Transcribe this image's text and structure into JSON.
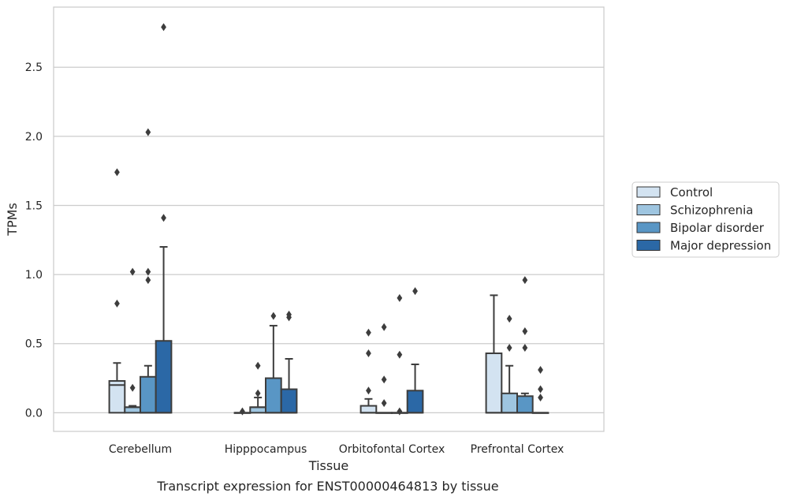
{
  "chart_data": {
    "type": "box",
    "title": "Transcript expression for ENST00000464813 by tissue",
    "xlabel": "Tissue",
    "ylabel": "TPMs",
    "ylim": [
      -0.135,
      2.935
    ],
    "yticks": [
      0.0,
      0.5,
      1.0,
      1.5,
      2.0,
      2.5
    ],
    "ytick_labels": [
      "0.0",
      "0.5",
      "1.0",
      "1.5",
      "2.0",
      "2.5"
    ],
    "categories": [
      "Cerebellum",
      "Hipppocampus",
      "Orbitofontal Cortex",
      "Prefrontal Cortex"
    ],
    "grid": "horizontal",
    "legend_position": "right",
    "series": [
      {
        "name": "Control",
        "color": "#d3e3f1",
        "boxes": [
          {
            "q1": 0.0,
            "median": 0.2,
            "q3": 0.23,
            "whisker_low": 0.0,
            "whisker_high": 0.36,
            "outliers": [
              1.74,
              0.79
            ]
          },
          {
            "q1": 0.0,
            "median": 0.0,
            "q3": 0.0,
            "whisker_low": 0.0,
            "whisker_high": 0.0,
            "outliers": [
              0.01
            ]
          },
          {
            "q1": 0.0,
            "median": 0.0,
            "q3": 0.05,
            "whisker_low": 0.0,
            "whisker_high": 0.1,
            "outliers": [
              0.58,
              0.43,
              0.16
            ]
          },
          {
            "q1": 0.0,
            "median": 0.0,
            "q3": 0.43,
            "whisker_low": 0.0,
            "whisker_high": 0.85,
            "outliers": []
          }
        ]
      },
      {
        "name": "Schizophrenia",
        "color": "#9ec5e0",
        "boxes": [
          {
            "q1": 0.0,
            "median": 0.04,
            "q3": 0.04,
            "whisker_low": 0.0,
            "whisker_high": 0.05,
            "outliers": [
              1.02,
              0.18
            ]
          },
          {
            "q1": 0.0,
            "median": 0.04,
            "q3": 0.04,
            "whisker_low": 0.0,
            "whisker_high": 0.11,
            "outliers": [
              0.34,
              0.14
            ]
          },
          {
            "q1": 0.0,
            "median": 0.0,
            "q3": 0.0,
            "whisker_low": 0.0,
            "whisker_high": 0.0,
            "outliers": [
              0.62,
              0.24,
              0.07
            ]
          },
          {
            "q1": 0.0,
            "median": 0.0,
            "q3": 0.14,
            "whisker_low": 0.0,
            "whisker_high": 0.34,
            "outliers": [
              0.68,
              0.47
            ]
          }
        ]
      },
      {
        "name": "Bipolar disorder",
        "color": "#5996c5",
        "boxes": [
          {
            "q1": 0.0,
            "median": 0.0,
            "q3": 0.26,
            "whisker_low": 0.0,
            "whisker_high": 0.34,
            "outliers": [
              2.03,
              1.02,
              0.96
            ]
          },
          {
            "q1": 0.0,
            "median": 0.0,
            "q3": 0.25,
            "whisker_low": 0.0,
            "whisker_high": 0.63,
            "outliers": [
              0.7
            ]
          },
          {
            "q1": 0.0,
            "median": 0.0,
            "q3": 0.0,
            "whisker_low": 0.0,
            "whisker_high": 0.0,
            "outliers": [
              0.83,
              0.42,
              0.01
            ]
          },
          {
            "q1": 0.0,
            "median": 0.0,
            "q3": 0.12,
            "whisker_low": 0.0,
            "whisker_high": 0.14,
            "outliers": [
              0.96,
              0.59,
              0.47
            ]
          }
        ]
      },
      {
        "name": "Major depression",
        "color": "#2b68a6",
        "boxes": [
          {
            "q1": 0.0,
            "median": 0.0,
            "q3": 0.52,
            "whisker_low": 0.0,
            "whisker_high": 1.2,
            "outliers": [
              2.79,
              1.41
            ]
          },
          {
            "q1": 0.0,
            "median": 0.0,
            "q3": 0.17,
            "whisker_low": 0.0,
            "whisker_high": 0.39,
            "outliers": [
              0.71,
              0.69
            ]
          },
          {
            "q1": 0.0,
            "median": 0.0,
            "q3": 0.16,
            "whisker_low": 0.0,
            "whisker_high": 0.35,
            "outliers": [
              0.88
            ]
          },
          {
            "q1": 0.0,
            "median": 0.0,
            "q3": 0.0,
            "whisker_low": 0.0,
            "whisker_high": 0.0,
            "outliers": [
              0.31,
              0.17,
              0.11
            ]
          }
        ]
      }
    ]
  }
}
